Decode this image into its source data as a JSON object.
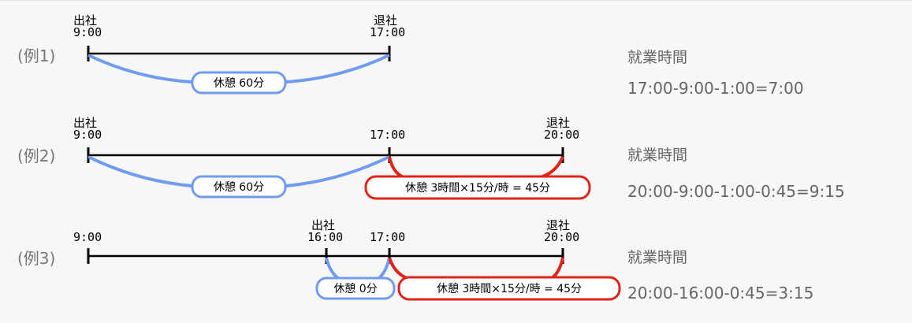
{
  "examples": [
    {
      "label": "(例1)",
      "start_event": "出社",
      "start_time": "9:00",
      "end_event": "退社",
      "end_time": "17:00",
      "break_pill": "休憩 60分",
      "title": "就業時間",
      "formula": "17:00-9:00-1:00=7:00"
    },
    {
      "label": "(例2)",
      "start_event": "出社",
      "start_time": "9:00",
      "mid_time": "17:00",
      "end_event": "退社",
      "end_time": "20:00",
      "break_pill": "休憩 60分",
      "overtime_pill": "休憩 3時間×15分/時 = 45分",
      "title": "就業時間",
      "formula": "20:00-9:00-1:00-0:45=9:15"
    },
    {
      "label": "(例3)",
      "first_time": "9:00",
      "start_event": "出社",
      "start_time": "16:00",
      "mid_time": "17:00",
      "end_event": "退社",
      "end_time": "20:00",
      "break_pill": "休憩 0分",
      "overtime_pill": "休憩 3時間×15分/時 = 45分",
      "title": "就業時間",
      "formula": "20:00-16:00-0:45=3:15"
    }
  ],
  "colors": {
    "break_arc": "#6f9bf0",
    "overtime_arc": "#e2231a",
    "label_gray": "#777777"
  }
}
